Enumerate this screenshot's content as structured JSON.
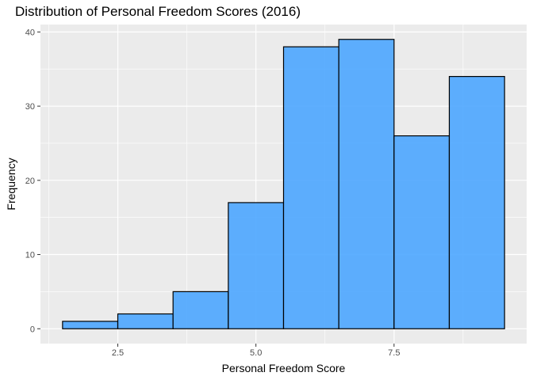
{
  "chart_data": {
    "type": "bar",
    "title": "Distribution of Personal Freedom Scores (2016)",
    "xlabel": "Personal Freedom Score",
    "ylabel": "Frequency",
    "bins": [
      {
        "x0": 1.5,
        "x1": 2.5,
        "count": 1
      },
      {
        "x0": 2.5,
        "x1": 3.5,
        "count": 2
      },
      {
        "x0": 3.5,
        "x1": 4.5,
        "count": 5
      },
      {
        "x0": 4.5,
        "x1": 5.5,
        "count": 17
      },
      {
        "x0": 5.5,
        "x1": 6.5,
        "count": 38
      },
      {
        "x0": 6.5,
        "x1": 7.5,
        "count": 39
      },
      {
        "x0": 7.5,
        "x1": 8.5,
        "count": 26
      },
      {
        "x0": 8.5,
        "x1": 9.5,
        "count": 34
      }
    ],
    "x_ticks": [
      {
        "value": 2.5,
        "label": "2.5"
      },
      {
        "value": 5.0,
        "label": "5.0"
      },
      {
        "value": 7.5,
        "label": "7.5"
      }
    ],
    "y_ticks": [
      {
        "value": 0,
        "label": "0"
      },
      {
        "value": 10,
        "label": "10"
      },
      {
        "value": 20,
        "label": "20"
      },
      {
        "value": 30,
        "label": "30"
      },
      {
        "value": 40,
        "label": "40"
      }
    ],
    "xlim": [
      1.1,
      9.9
    ],
    "ylim": [
      -2.0,
      41.0
    ],
    "grid": true,
    "colors": {
      "bar_fill": "#4da6ff",
      "bar_stroke": "#000000",
      "panel": "#ebebeb",
      "grid": "#ffffff"
    }
  }
}
